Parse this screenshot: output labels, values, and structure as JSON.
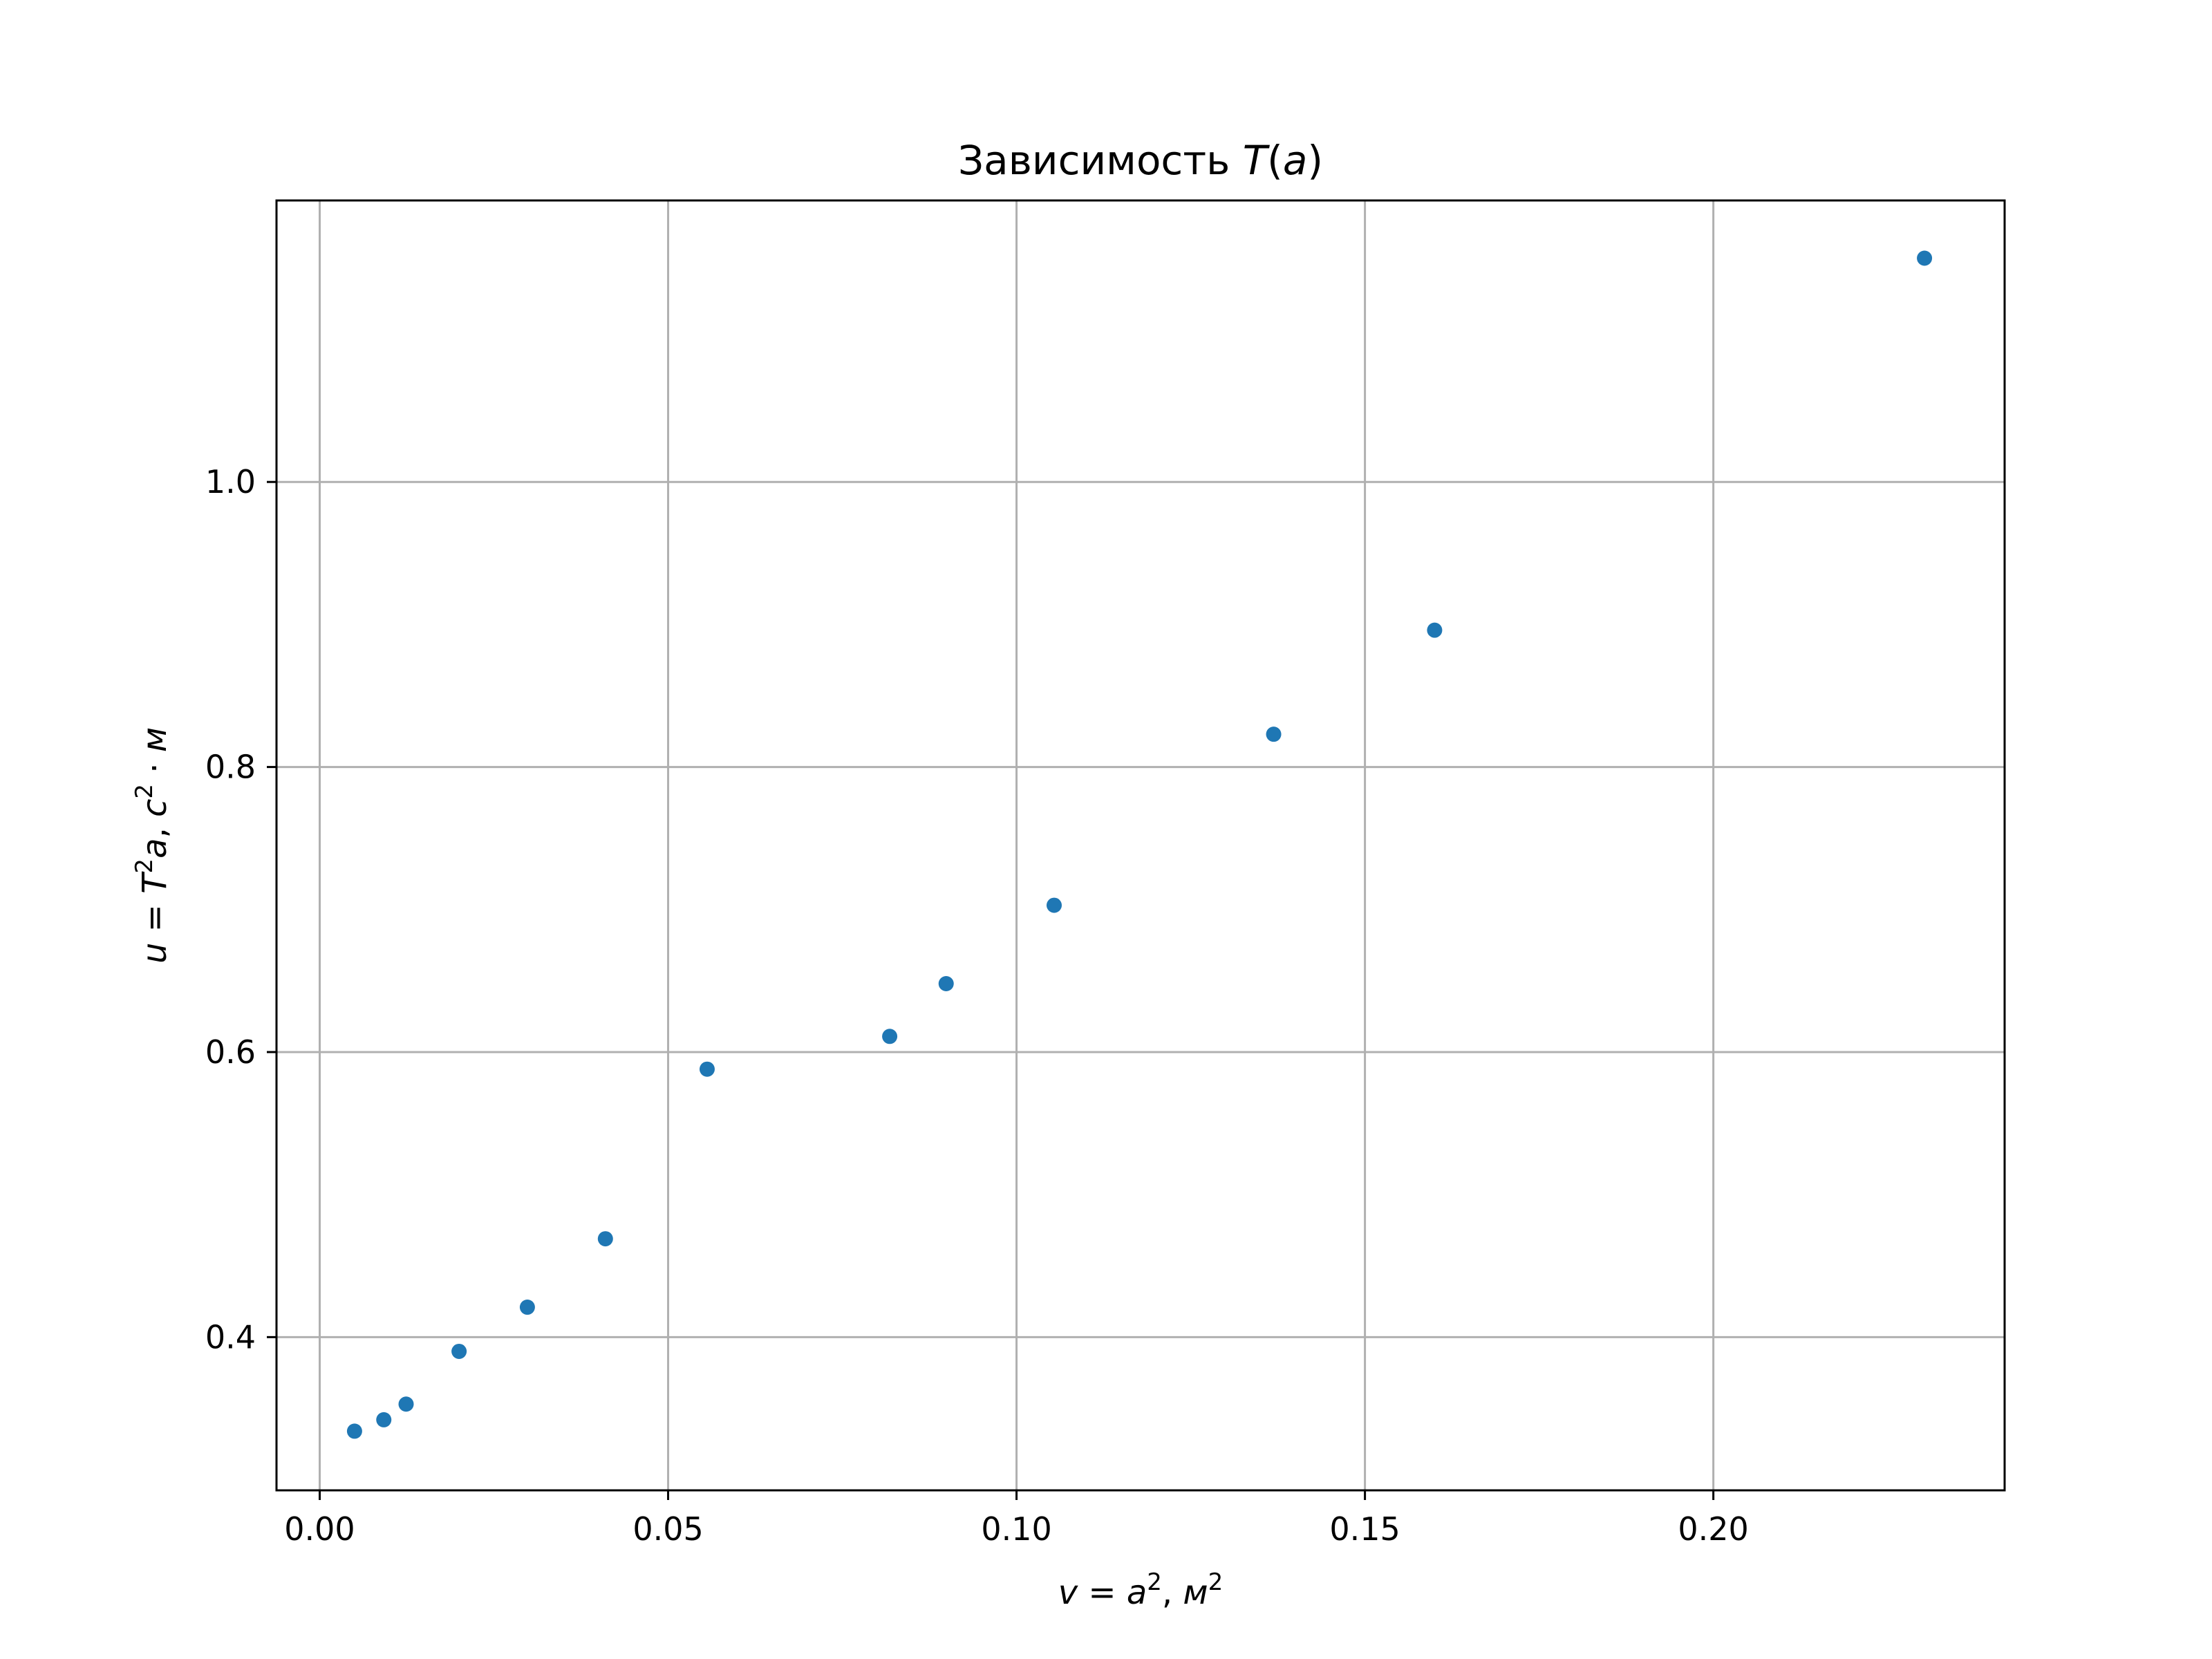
{
  "chart_data": {
    "type": "scatter",
    "title": "Зависимость T(a)",
    "title_parts": {
      "prefix": "Зависимость ",
      "var": "T",
      "open": "(",
      "arg": "a",
      "close": ")"
    },
    "xlabel": "v = a², м²",
    "xlabel_parts": {
      "lhs": "v",
      "eq": " = ",
      "rhs": "a",
      "sup": "2",
      "sep": ", ",
      "unit": "м",
      "unit_sup": "2"
    },
    "ylabel": "u = T²a, с²·м",
    "ylabel_parts": {
      "lhs": "u",
      "eq": " = ",
      "rhs": "T",
      "sup": "2",
      "rhs2": "a",
      "sep": ", ",
      "unit": "с",
      "unit_sup": "2",
      "dot": " · ",
      "unit2": "м"
    },
    "xlim": [
      -0.0062,
      0.2418
    ],
    "ylim": [
      0.2925,
      1.1975
    ],
    "xticks": [
      0.0,
      0.05,
      0.1,
      0.15,
      0.2
    ],
    "xtick_labels": [
      "0.00",
      "0.05",
      "0.10",
      "0.15",
      "0.20"
    ],
    "yticks": [
      0.4,
      0.6,
      0.8,
      1.0
    ],
    "ytick_labels": [
      "0.4",
      "0.6",
      "0.8",
      "1.0"
    ],
    "grid": true,
    "series": [
      {
        "color": "#1f77b4",
        "points": [
          {
            "x": 0.005,
            "y": 0.334
          },
          {
            "x": 0.0092,
            "y": 0.342
          },
          {
            "x": 0.0124,
            "y": 0.353
          },
          {
            "x": 0.02,
            "y": 0.39
          },
          {
            "x": 0.0298,
            "y": 0.421
          },
          {
            "x": 0.041,
            "y": 0.469
          },
          {
            "x": 0.0556,
            "y": 0.588
          },
          {
            "x": 0.0818,
            "y": 0.611
          },
          {
            "x": 0.0899,
            "y": 0.648
          },
          {
            "x": 0.1054,
            "y": 0.703
          },
          {
            "x": 0.1369,
            "y": 0.823
          },
          {
            "x": 0.16,
            "y": 0.896
          },
          {
            "x": 0.2303,
            "y": 1.157
          }
        ]
      }
    ]
  }
}
